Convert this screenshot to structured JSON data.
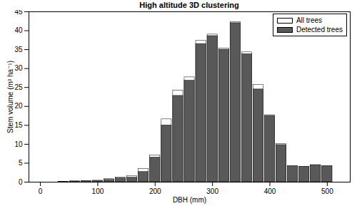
{
  "chart_data": {
    "type": "bar",
    "title": "High altitude 3D clustering",
    "x_label": "DBH (mm)",
    "y_label": "Stem volume (m³ ha⁻¹)",
    "x": [
      40,
      60,
      80,
      100,
      120,
      140,
      160,
      180,
      200,
      220,
      240,
      260,
      280,
      300,
      320,
      340,
      360,
      380,
      400,
      420,
      440,
      460,
      480,
      500
    ],
    "series": [
      {
        "name": "All trees",
        "color": "#ffffff",
        "values": [
          0.1,
          0.2,
          0.3,
          0.4,
          0.8,
          1.2,
          1.6,
          3.5,
          7.1,
          16.6,
          24.2,
          27.7,
          37.4,
          39.0,
          35.3,
          42.3,
          34.3,
          25.7,
          17.7,
          10.1,
          4.2,
          4.1,
          4.5,
          4.2
        ]
      },
      {
        "name": "Detected trees",
        "color": "#595959",
        "values": [
          0.1,
          0.2,
          0.3,
          0.3,
          0.6,
          1.0,
          1.2,
          2.7,
          6.5,
          15.0,
          22.8,
          26.8,
          36.5,
          38.6,
          35.0,
          42.0,
          33.8,
          24.5,
          17.5,
          9.8,
          4.2,
          4.1,
          4.5,
          4.2
        ]
      }
    ],
    "xlim": [
      -20,
      540
    ],
    "xticks": [
      0,
      100,
      200,
      300,
      400,
      500
    ],
    "ylim": [
      0,
      45
    ],
    "yticks": [
      0,
      5,
      10,
      15,
      20,
      25,
      30,
      35,
      40,
      45
    ],
    "grid": false,
    "legend": "top-right"
  }
}
